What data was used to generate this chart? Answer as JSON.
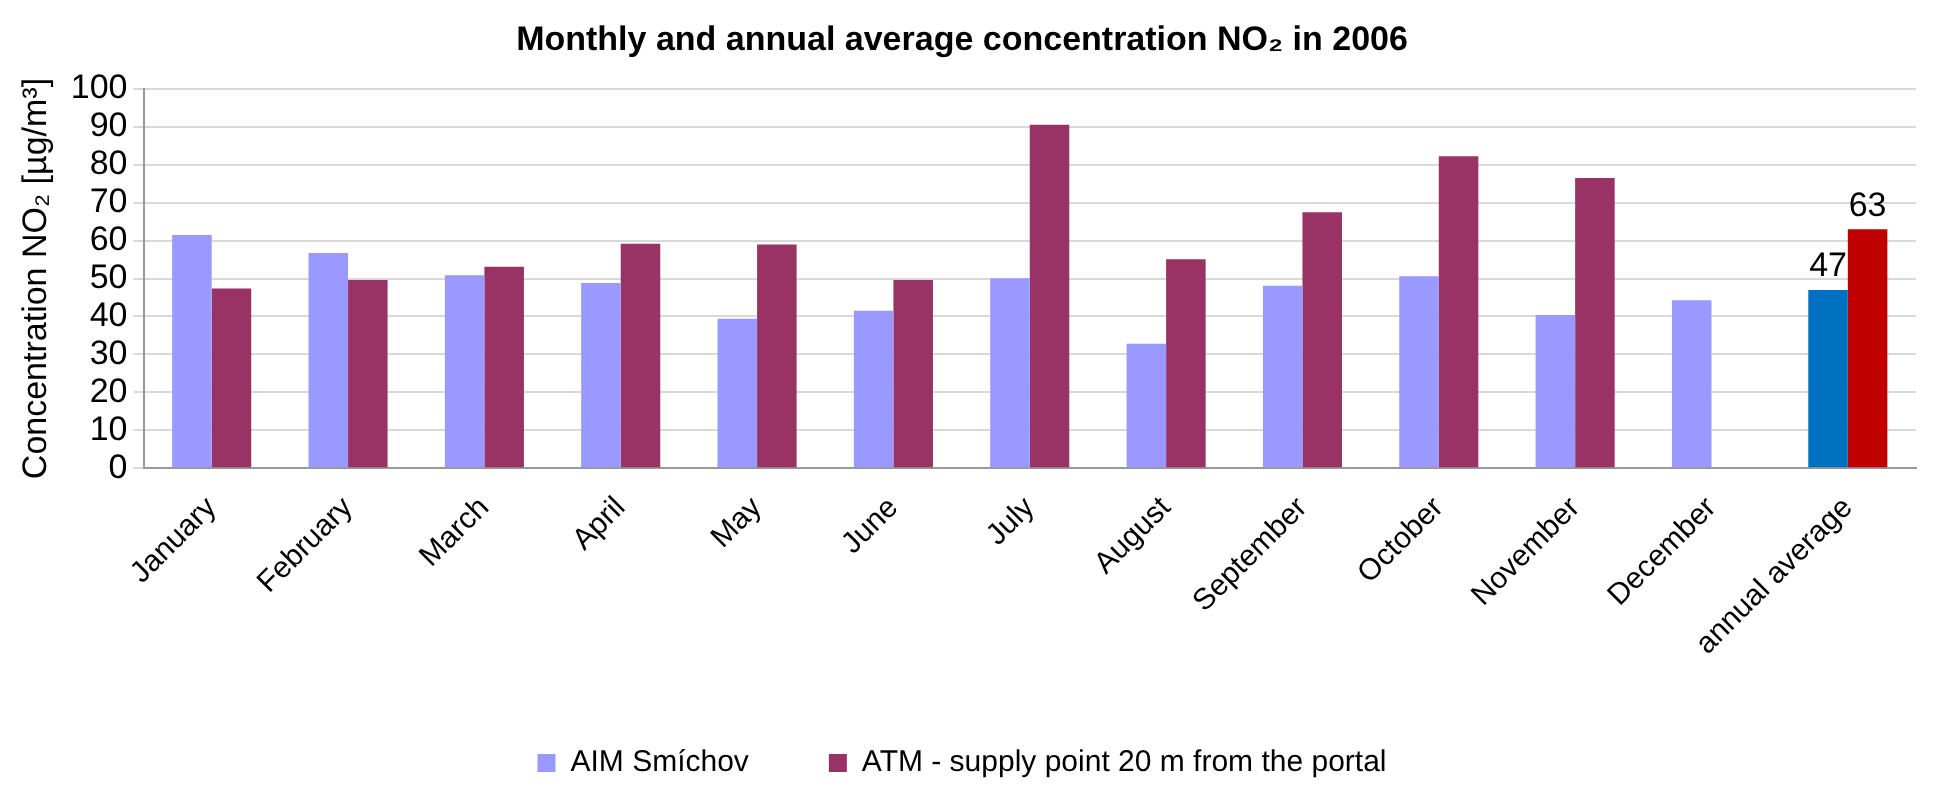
{
  "chart_data": {
    "type": "bar",
    "title": "Monthly and annual average concentration NO₂ in 2006",
    "ylabel": "Concentration NO₂ [µg/m³]",
    "categories": [
      "January",
      "February",
      "March",
      "April",
      "May",
      "June",
      "July",
      "August",
      "September",
      "October",
      "November",
      "December",
      "annual average"
    ],
    "series": [
      {
        "name": "AIM Smíchov",
        "color": "#9999ff",
        "colors": [
          "#9999ff",
          "#9999ff",
          "#9999ff",
          "#9999ff",
          "#9999ff",
          "#9999ff",
          "#9999ff",
          "#9999ff",
          "#9999ff",
          "#9999ff",
          "#9999ff",
          "#9999ff",
          "#0070c0"
        ],
        "values": [
          61.5,
          56.7,
          50.9,
          48.8,
          39.4,
          41.5,
          50.1,
          32.8,
          48.1,
          50.6,
          40.4,
          44.3,
          47
        ],
        "value_labels": [
          null,
          null,
          null,
          null,
          null,
          null,
          null,
          null,
          null,
          null,
          null,
          null,
          "47"
        ]
      },
      {
        "name": "ATM - supply point 20 m from the portal",
        "color": "#993366",
        "colors": [
          "#993366",
          "#993366",
          "#993366",
          "#993366",
          "#993366",
          "#993366",
          "#993366",
          "#993366",
          "#993366",
          "#993366",
          "#993366",
          "#993366",
          "#c00000"
        ],
        "values": [
          47.4,
          49.6,
          53.1,
          59.2,
          59.0,
          49.6,
          90.5,
          55.1,
          67.5,
          82.2,
          76.5,
          null,
          63
        ],
        "value_labels": [
          null,
          null,
          null,
          null,
          null,
          null,
          null,
          null,
          null,
          null,
          null,
          null,
          "63"
        ]
      }
    ],
    "ylim": [
      0,
      100
    ],
    "yticks": [
      0,
      10,
      20,
      30,
      40,
      50,
      60,
      70,
      80,
      90,
      100
    ],
    "grid": "y",
    "legend": "bottom"
  }
}
